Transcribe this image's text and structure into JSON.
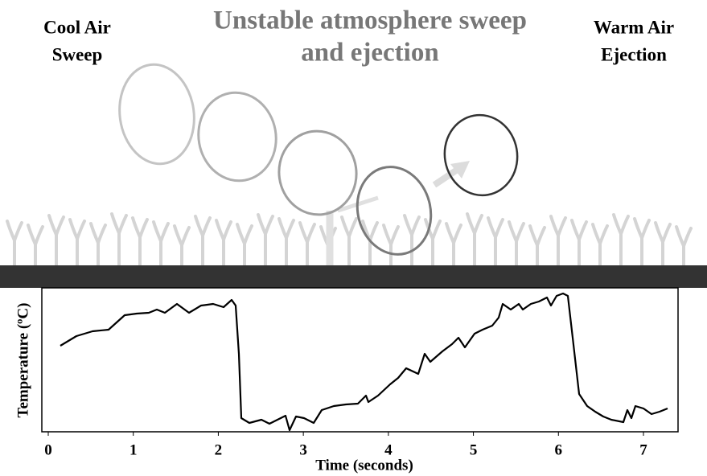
{
  "header": {
    "title_lines": [
      "Unstable atmosphere sweep",
      "and ejection"
    ],
    "left_label_lines": [
      "Cool Air",
      "Sweep"
    ],
    "right_label_lines": [
      "Warm Air",
      "Ejection"
    ]
  },
  "chart_data": {
    "type": "line",
    "xlabel": "Time (seconds)",
    "ylabel": "Temperature (ºC)",
    "xlim": [
      -0.2,
      7.4
    ],
    "xticks": [
      0,
      1,
      2,
      3,
      4,
      5,
      6,
      7
    ]
  }
}
